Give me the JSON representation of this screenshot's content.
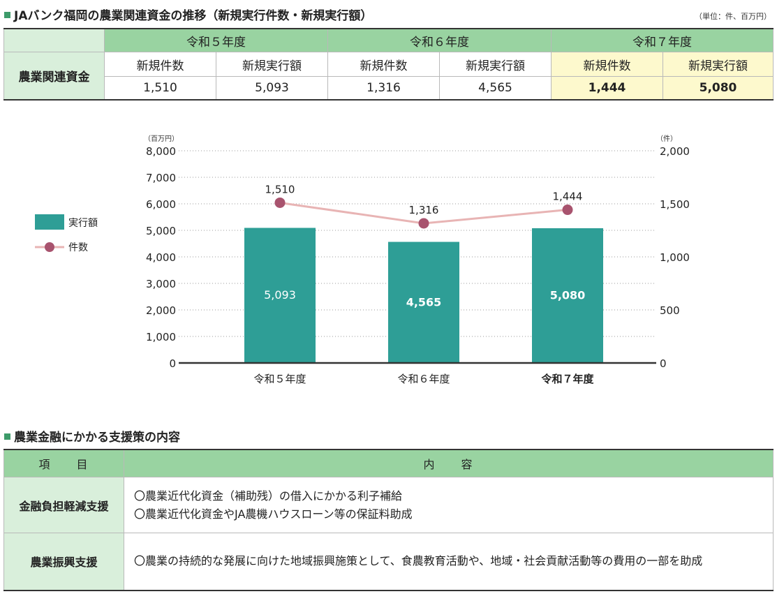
{
  "section1": {
    "title": "JAバンク福岡の農業関連資金の推移（新規実行件数・新規実行額）",
    "unit_note": "（単位：件、百万円）"
  },
  "table1": {
    "row_label": "農業関連資金",
    "years": [
      {
        "label": "令和５年度",
        "count_header": "新規件数",
        "amount_header": "新規実行額",
        "count": "1,510",
        "amount": "5,093"
      },
      {
        "label": "令和６年度",
        "count_header": "新規件数",
        "amount_header": "新規実行額",
        "count": "1,316",
        "amount": "4,565"
      },
      {
        "label": "令和７年度",
        "count_header": "新規件数",
        "amount_header": "新規実行額",
        "count": "1,444",
        "amount": "5,080"
      }
    ]
  },
  "chart_data": {
    "type": "bar",
    "categories": [
      "令和５年度",
      "令和６年度",
      "令和７年度"
    ],
    "left_axis": {
      "unit": "（百万円）",
      "ylim": [
        0,
        8000
      ],
      "ticks": [
        "0",
        "1,000",
        "2,000",
        "3,000",
        "4,000",
        "5,000",
        "6,000",
        "7,000",
        "8,000"
      ]
    },
    "right_axis": {
      "unit": "（件）",
      "ylim": [
        0,
        2000
      ],
      "ticks": [
        "0",
        "500",
        "1,000",
        "1,500",
        "2,000"
      ]
    },
    "series": [
      {
        "name": "実行額",
        "kind": "bar",
        "axis": "left",
        "values": [
          5093,
          4565,
          5080
        ],
        "labels": [
          "5,093",
          "4,565",
          "5,080"
        ],
        "color": "#2e9e96"
      },
      {
        "name": "件数",
        "kind": "line",
        "axis": "right",
        "values": [
          1510,
          1316,
          1444
        ],
        "labels": [
          "1,510",
          "1,316",
          "1,444"
        ],
        "color": "#a8536e",
        "line_color": "#e8b4b4"
      }
    ],
    "grid": "dotted horizontal",
    "legend_placement": "left"
  },
  "section2": {
    "title": "農業金融にかかる支援策の内容",
    "header_item": "項　　目",
    "header_content": "内　　容",
    "rows": [
      {
        "item": "金融負担軽減支援",
        "lines": [
          "〇農業近代化資金（補助残）の借入にかかる利子補給",
          "〇農業近代化資金やJA農機ハウスローン等の保証料助成"
        ]
      },
      {
        "item": "農業振興支援",
        "lines": [
          "〇農業の持続的な発展に向けた地域振興施策として、食農教育活動や、地域・社会貢献活動等の費用の一部を助成"
        ]
      }
    ]
  },
  "colors": {
    "accent_green": "#3d9b6a",
    "header_green": "#99d3a1",
    "light_green": "#d9efdb",
    "highlight_yellow": "#fdf9cd",
    "bar": "#2e9e96",
    "marker": "#a8536e"
  }
}
